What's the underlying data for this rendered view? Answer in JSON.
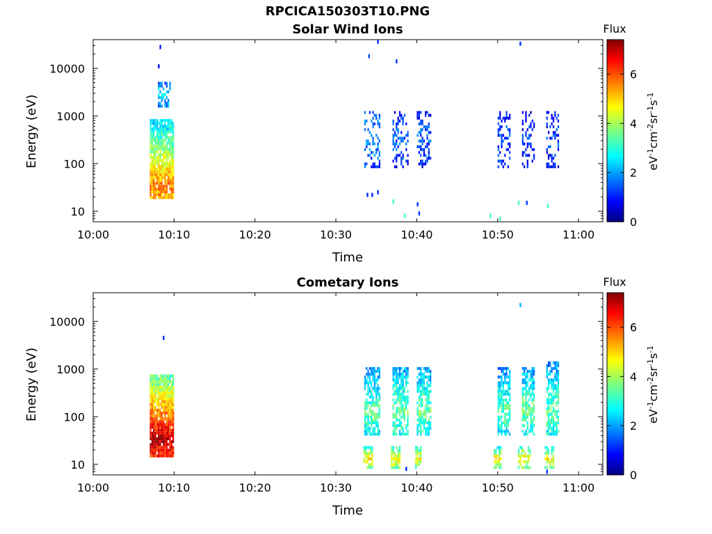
{
  "figure": {
    "title": "RPCICA150303T10.PNG"
  },
  "chart_data": [
    {
      "type": "heatmap",
      "title": "Solar Wind Ions",
      "xlabel": "Time",
      "ylabel": "Energy (eV)",
      "x_ticks": [
        "10:00",
        "10:10",
        "10:20",
        "10:30",
        "10:40",
        "10:50",
        "11:00"
      ],
      "x_range_minutes": [
        0,
        63
      ],
      "y_scale": "log",
      "y_ticks": [
        10,
        100,
        1000,
        10000
      ],
      "y_tick_labels": [
        "10",
        "100",
        "1000",
        "10000"
      ],
      "y_range": [
        6,
        40000
      ],
      "colorbar": {
        "label": "Flux",
        "unit_label": "eV-1cm-2sr-1s-1",
        "range": [
          0,
          7.4
        ],
        "ticks": [
          0,
          2,
          4,
          6
        ],
        "colormap": "jet"
      },
      "clusters": [
        {
          "t_start": 7.0,
          "t_end": 9.8,
          "e_low": 18,
          "e_high": 800,
          "peak_flux": 5.6,
          "peak_energy": 30,
          "density": 0.9
        },
        {
          "t_start": 8.0,
          "t_end": 9.5,
          "e_low": 1500,
          "e_high": 5000,
          "peak_flux": 2.6,
          "peak_energy": 2500,
          "density": 0.5
        },
        {
          "t_start": 33.5,
          "t_end": 35.5,
          "e_low": 80,
          "e_high": 1200,
          "peak_flux": 2.0,
          "peak_energy": 300,
          "density": 0.35
        },
        {
          "t_start": 37.0,
          "t_end": 39.0,
          "e_low": 80,
          "e_high": 1200,
          "peak_flux": 1.6,
          "peak_energy": 300,
          "density": 0.35
        },
        {
          "t_start": 40.0,
          "t_end": 41.8,
          "e_low": 80,
          "e_high": 1200,
          "peak_flux": 1.6,
          "peak_energy": 300,
          "density": 0.35
        },
        {
          "t_start": 50.0,
          "t_end": 51.5,
          "e_low": 80,
          "e_high": 1200,
          "peak_flux": 1.5,
          "peak_energy": 300,
          "density": 0.35
        },
        {
          "t_start": 53.0,
          "t_end": 54.5,
          "e_low": 80,
          "e_high": 1200,
          "peak_flux": 1.3,
          "peak_energy": 300,
          "density": 0.35
        },
        {
          "t_start": 56.0,
          "t_end": 57.5,
          "e_low": 80,
          "e_high": 1200,
          "peak_flux": 1.4,
          "peak_energy": 300,
          "density": 0.35
        }
      ],
      "sparse_points": [
        {
          "t": 8.2,
          "e": 28000,
          "flux": 1.0
        },
        {
          "t": 8.0,
          "e": 11000,
          "flux": 1.0
        },
        {
          "t": 34.0,
          "e": 18000,
          "flux": 1.5
        },
        {
          "t": 35.1,
          "e": 36000,
          "flux": 1.3
        },
        {
          "t": 37.4,
          "e": 14000,
          "flux": 1.3
        },
        {
          "t": 52.7,
          "e": 33000,
          "flux": 1.3
        },
        {
          "t": 33.8,
          "e": 22,
          "flux": 1.2
        },
        {
          "t": 34.4,
          "e": 22,
          "flux": 1.2
        },
        {
          "t": 35.1,
          "e": 25,
          "flux": 1.2
        },
        {
          "t": 37.0,
          "e": 16,
          "flux": 3.2
        },
        {
          "t": 38.4,
          "e": 8,
          "flux": 3.2
        },
        {
          "t": 40.0,
          "e": 14,
          "flux": 1.3
        },
        {
          "t": 40.2,
          "e": 9,
          "flux": 1.3
        },
        {
          "t": 49.0,
          "e": 8,
          "flux": 3.2
        },
        {
          "t": 50.2,
          "e": 7,
          "flux": 3.2
        },
        {
          "t": 52.5,
          "e": 15,
          "flux": 3.2
        },
        {
          "t": 53.5,
          "e": 15,
          "flux": 1.3
        },
        {
          "t": 56.1,
          "e": 13,
          "flux": 3.2
        }
      ]
    },
    {
      "type": "heatmap",
      "title": "Cometary Ions",
      "xlabel": "Time",
      "ylabel": "Energy (eV)",
      "x_ticks": [
        "10:00",
        "10:10",
        "10:20",
        "10:30",
        "10:40",
        "10:50",
        "11:00"
      ],
      "x_range_minutes": [
        0,
        63
      ],
      "y_scale": "log",
      "y_ticks": [
        10,
        100,
        1000,
        10000
      ],
      "y_tick_labels": [
        "10",
        "100",
        "1000",
        "10000"
      ],
      "y_range": [
        6,
        40000
      ],
      "colorbar": {
        "label": "Flux",
        "unit_label": "eV-1cm-2sr-1s-1",
        "range": [
          0,
          7.4
        ],
        "ticks": [
          0,
          2,
          4,
          6
        ],
        "colormap": "jet"
      },
      "clusters": [
        {
          "t_start": 7.0,
          "t_end": 9.8,
          "e_low": 14,
          "e_high": 700,
          "peak_flux": 7.0,
          "peak_energy": 30,
          "density": 0.95
        },
        {
          "t_start": 33.5,
          "t_end": 35.5,
          "e_low": 40,
          "e_high": 1100,
          "peak_flux": 3.4,
          "peak_energy": 120,
          "density": 0.7
        },
        {
          "t_start": 37.0,
          "t_end": 39.0,
          "e_low": 40,
          "e_high": 1100,
          "peak_flux": 3.6,
          "peak_energy": 120,
          "density": 0.7
        },
        {
          "t_start": 40.0,
          "t_end": 41.8,
          "e_low": 40,
          "e_high": 1000,
          "peak_flux": 3.6,
          "peak_energy": 120,
          "density": 0.7
        },
        {
          "t_start": 50.0,
          "t_end": 51.5,
          "e_low": 40,
          "e_high": 1000,
          "peak_flux": 3.4,
          "peak_energy": 120,
          "density": 0.7
        },
        {
          "t_start": 53.0,
          "t_end": 54.5,
          "e_low": 40,
          "e_high": 1000,
          "peak_flux": 3.6,
          "peak_energy": 120,
          "density": 0.7
        },
        {
          "t_start": 56.0,
          "t_end": 57.5,
          "e_low": 40,
          "e_high": 1300,
          "peak_flux": 3.5,
          "peak_energy": 120,
          "density": 0.7
        },
        {
          "t_start": 33.4,
          "t_end": 34.6,
          "e_low": 8,
          "e_high": 22,
          "peak_flux": 4.8,
          "peak_energy": 12,
          "density": 0.7
        },
        {
          "t_start": 36.8,
          "t_end": 38.0,
          "e_low": 8,
          "e_high": 22,
          "peak_flux": 4.8,
          "peak_energy": 12,
          "density": 0.7
        },
        {
          "t_start": 39.8,
          "t_end": 40.5,
          "e_low": 8,
          "e_high": 22,
          "peak_flux": 4.6,
          "peak_energy": 12,
          "density": 0.7
        },
        {
          "t_start": 49.5,
          "t_end": 50.5,
          "e_low": 8,
          "e_high": 22,
          "peak_flux": 4.8,
          "peak_energy": 12,
          "density": 0.7
        },
        {
          "t_start": 52.5,
          "t_end": 54.0,
          "e_low": 8,
          "e_high": 22,
          "peak_flux": 4.8,
          "peak_energy": 12,
          "density": 0.7
        },
        {
          "t_start": 55.8,
          "t_end": 57.0,
          "e_low": 8,
          "e_high": 22,
          "peak_flux": 4.6,
          "peak_energy": 12,
          "density": 0.7
        }
      ],
      "sparse_points": [
        {
          "t": 8.6,
          "e": 4500,
          "flux": 1.3
        },
        {
          "t": 52.7,
          "e": 22000,
          "flux": 2.2
        },
        {
          "t": 38.6,
          "e": 8,
          "flux": 1.2
        },
        {
          "t": 56.0,
          "e": 7,
          "flux": 1.3
        }
      ]
    }
  ]
}
